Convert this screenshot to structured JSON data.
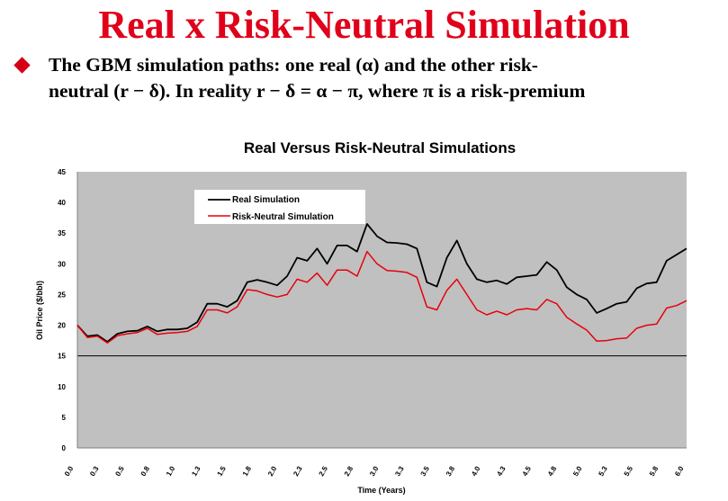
{
  "slide": {
    "title": "Real x Risk-Neutral Simulation",
    "bullet_line1": "The GBM simulation paths: one real (α) and the other risk-",
    "bullet_line2": "neutral (r − δ). In reality r − δ = α − π, where π is a risk-premium"
  },
  "colors": {
    "title": "#e0001a",
    "real": "#000000",
    "risk_neutral": "#e8000b",
    "plot_bg": "#c0c0c0"
  },
  "chart_data": {
    "type": "line",
    "title": "Real Versus Risk-Neutral Simulations",
    "xlabel": "Time (Years)",
    "ylabel": "Oil Price ($/bbl)",
    "ylim": [
      0,
      45
    ],
    "yticks": [
      "0",
      "5",
      "10",
      "15",
      "20",
      "25",
      "30",
      "35",
      "40",
      "45"
    ],
    "xticks": [
      "0.0",
      "0.3",
      "0.5",
      "0.8",
      "1.0",
      "1.3",
      "1.5",
      "1.8",
      "2.0",
      "2.3",
      "2.5",
      "2.8",
      "3.0",
      "3.3",
      "3.5",
      "3.8",
      "4.0",
      "4.3",
      "4.5",
      "4.8",
      "5.0",
      "5.3",
      "5.5",
      "5.8",
      "6.0"
    ],
    "grid": "horizontal-15",
    "legend": "top-left",
    "x": [
      0.0,
      0.1,
      0.2,
      0.3,
      0.4,
      0.5,
      0.6,
      0.7,
      0.8,
      0.9,
      1.0,
      1.1,
      1.2,
      1.3,
      1.4,
      1.5,
      1.6,
      1.7,
      1.8,
      1.9,
      2.0,
      2.1,
      2.2,
      2.3,
      2.4,
      2.5,
      2.6,
      2.7,
      2.8,
      2.9,
      3.0,
      3.1,
      3.2,
      3.3,
      3.4,
      3.5,
      3.6,
      3.7,
      3.8,
      3.9,
      4.0,
      4.1,
      4.2,
      4.3,
      4.4,
      4.5,
      4.6,
      4.7,
      4.8,
      4.9,
      5.0,
      5.1,
      5.2,
      5.3,
      5.4,
      5.5,
      5.6,
      5.7,
      5.8,
      5.9,
      6.0,
      6.1
    ],
    "series": [
      {
        "name": "Real Simulation",
        "values": [
          20.0,
          18.2,
          18.4,
          17.3,
          18.6,
          19.0,
          19.1,
          19.8,
          19.0,
          19.3,
          19.3,
          19.5,
          20.5,
          23.5,
          23.5,
          23.0,
          24.0,
          27.0,
          27.4,
          27.0,
          26.5,
          28.0,
          31.0,
          30.5,
          32.5,
          30.0,
          33.0,
          33.0,
          32.0,
          36.5,
          34.5,
          33.5,
          33.4,
          33.2,
          32.5,
          27.0,
          26.3,
          31.0,
          33.8,
          30.0,
          27.5,
          27.0,
          27.3,
          26.7,
          27.8,
          28.0,
          28.2,
          30.3,
          29.0,
          26.2,
          25.0,
          24.2,
          22.0,
          22.7,
          23.5,
          23.8,
          26.0,
          26.8,
          27.0,
          30.5,
          31.5,
          32.5
        ]
      },
      {
        "name": "Risk-Neutral Simulation",
        "values": [
          20.0,
          18.0,
          18.2,
          17.1,
          18.3,
          18.6,
          18.8,
          19.5,
          18.5,
          18.7,
          18.8,
          19.0,
          19.8,
          22.5,
          22.5,
          22.0,
          23.0,
          25.8,
          25.6,
          25.0,
          24.6,
          25.0,
          27.5,
          27.0,
          28.5,
          26.5,
          29.0,
          29.0,
          28.0,
          32.0,
          30.0,
          28.9,
          28.8,
          28.6,
          27.8,
          23.0,
          22.5,
          25.7,
          27.5,
          25.0,
          22.5,
          21.7,
          22.3,
          21.7,
          22.5,
          22.7,
          22.5,
          24.2,
          23.5,
          21.3,
          20.2,
          19.2,
          17.4,
          17.5,
          17.8,
          17.9,
          19.5,
          20.0,
          20.2,
          22.8,
          23.2,
          24.0
        ]
      }
    ]
  }
}
